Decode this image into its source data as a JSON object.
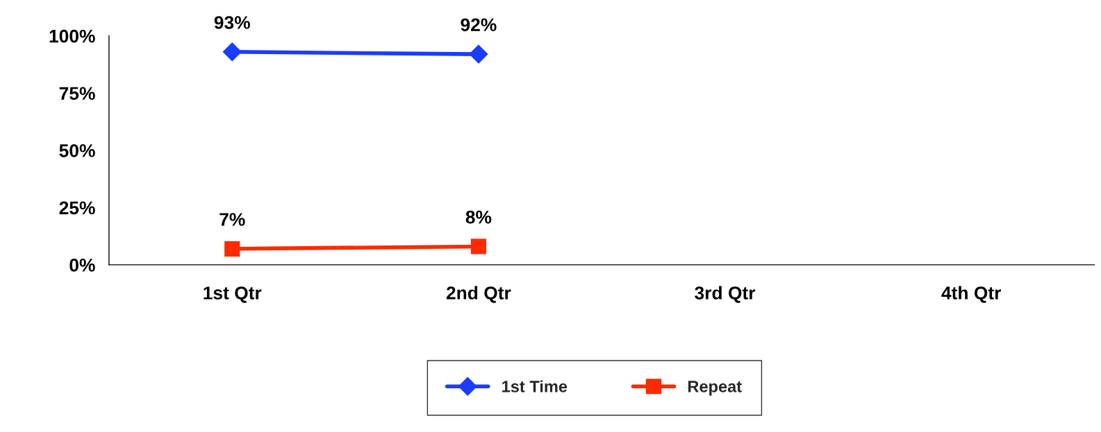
{
  "chart_data": {
    "type": "line",
    "categories": [
      "1st Qtr",
      "2nd Qtr",
      "3rd Qtr",
      "4th Qtr"
    ],
    "series": [
      {
        "name": "1st Time",
        "color": "#1a3cff",
        "marker": "diamond",
        "values": [
          93,
          92,
          null,
          null
        ],
        "value_labels": [
          "93%",
          "92%",
          null,
          null
        ]
      },
      {
        "name": "Repeat",
        "color": "#ff2a00",
        "marker": "square",
        "values": [
          7,
          8,
          null,
          null
        ],
        "value_labels": [
          "7%",
          "8%",
          null,
          null
        ]
      }
    ],
    "ylim": [
      0,
      100
    ],
    "yticks": [
      {
        "value": 0,
        "label": "0%"
      },
      {
        "value": 25,
        "label": "25%"
      },
      {
        "value": 50,
        "label": "50%"
      },
      {
        "value": 75,
        "label": "75%"
      },
      {
        "value": 100,
        "label": "100%"
      }
    ],
    "grid": false,
    "legend": "bottom",
    "line_style": "solid"
  }
}
